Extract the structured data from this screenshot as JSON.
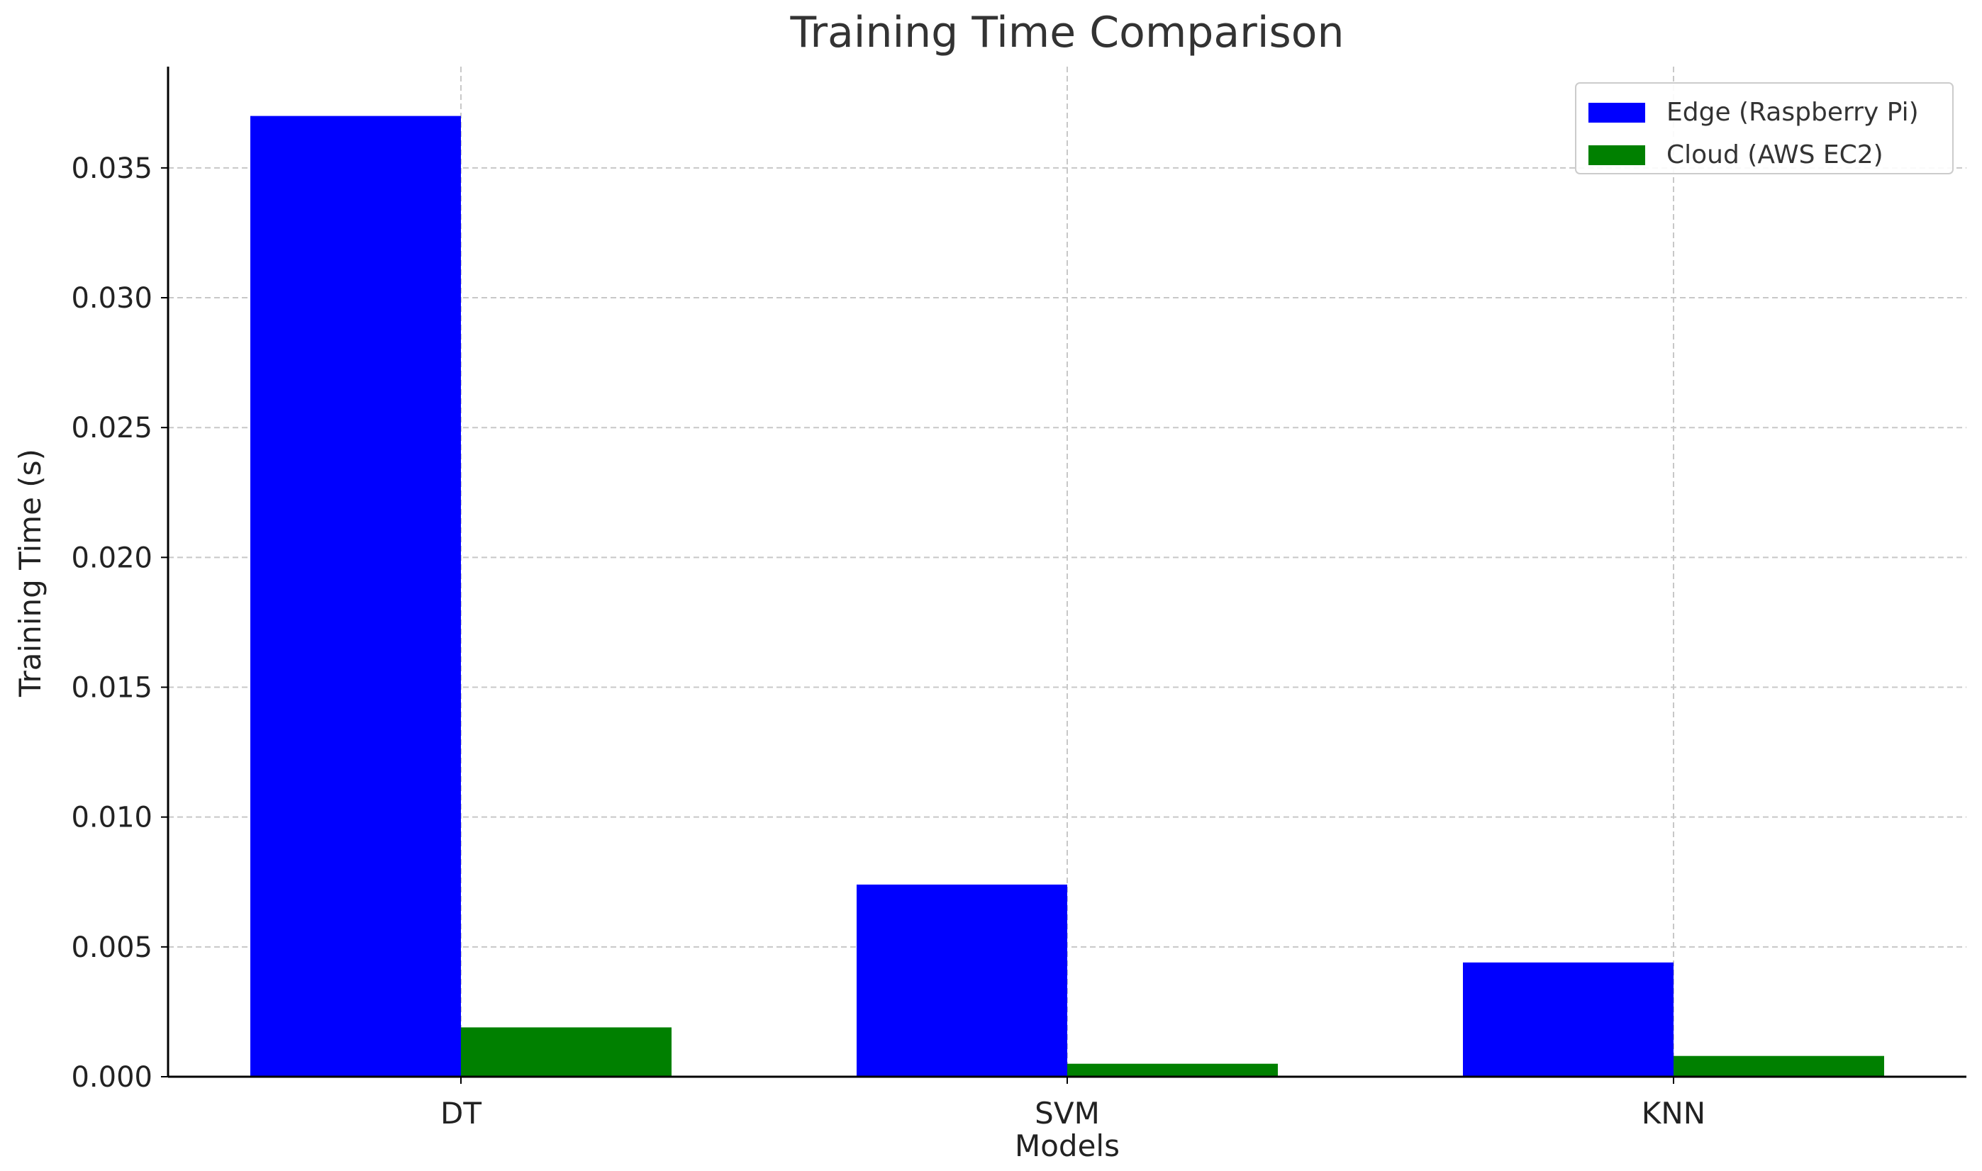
{
  "chart_data": {
    "type": "bar",
    "title": "Training Time Comparison",
    "xlabel": "Models",
    "ylabel": "Training Time (s)",
    "categories": [
      "DT",
      "SVM",
      "KNN"
    ],
    "series": [
      {
        "name": "Edge (Raspberry Pi)",
        "color": "#0000ff",
        "values": [
          0.037,
          0.0074,
          0.0044
        ]
      },
      {
        "name": "Cloud (AWS EC2)",
        "color": "#008000",
        "values": [
          0.0019,
          0.0005,
          0.0008
        ]
      }
    ],
    "ylim": [
      0,
      0.0389
    ],
    "yticks": [
      "0.000",
      "0.005",
      "0.010",
      "0.015",
      "0.020",
      "0.025",
      "0.030",
      "0.035"
    ],
    "ytick_values": [
      0,
      0.005,
      0.01,
      0.015,
      0.02,
      0.025,
      0.03,
      0.035
    ],
    "grid": true,
    "legend_position": "top-right"
  }
}
